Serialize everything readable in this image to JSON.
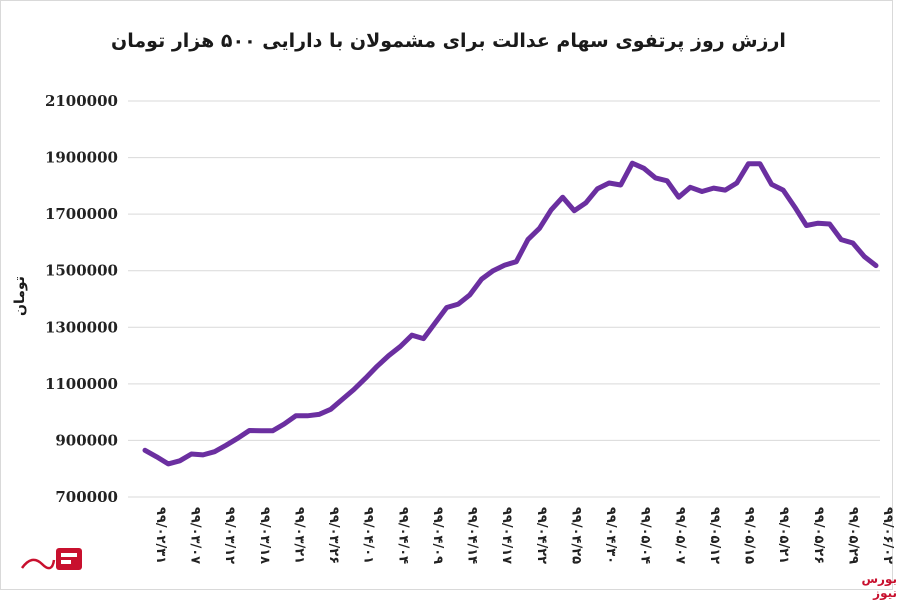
{
  "chart_data": {
    "type": "line",
    "title": "ارزش روز پرتفوی سهام عدالت برای مشمولان با دارایی ۵۰۰ هزار تومان",
    "ylabel": "تومان",
    "xlabel": "",
    "ylim": [
      700000,
      2100000
    ],
    "yticks": [
      700000,
      900000,
      1100000,
      1300000,
      1500000,
      1700000,
      1900000,
      2100000
    ],
    "ytick_labels": [
      "700000",
      "900000",
      "1100000",
      "1300000",
      "1500000",
      "1700000",
      "1900000",
      "2100000"
    ],
    "x_labels": [
      "۹۹/۰۲/۳۱",
      "۹۹/۰۳/۰۷",
      "۹۹/۰۳/۱۲",
      "۹۹/۰۳/۱۸",
      "۹۹/۰۳/۲۱",
      "۹۹/۰۳/۲۶",
      "۹۹/۰۴/۰۱",
      "۹۹/۰۴/۰۴",
      "۹۹/۰۴/۰۹",
      "۹۹/۰۴/۱۴",
      "۹۹/۰۴/۱۷",
      "۹۹/۰۴/۲۲",
      "۹۹/۰۴/۲۵",
      "۹۹/۰۴/۳۰",
      "۹۹/۰۵/۰۴",
      "۹۹/۰۵/۰۷",
      "۹۹/۰۵/۱۲",
      "۹۹/۰۵/۱۵",
      "۹۹/۰۵/۲۱",
      "۹۹/۰۵/۲۶",
      "۹۹/۰۵/۲۹",
      "۹۹/۰۶/۰۲"
    ],
    "grid": true,
    "color": "#6b2fa0",
    "series": [
      {
        "values": [
          865000,
          842000,
          817000,
          828000,
          852000,
          849000,
          860000,
          883000,
          908000,
          935000,
          934000,
          934000,
          958000,
          987000,
          987000,
          992000,
          1010000,
          1045000,
          1080000,
          1120000,
          1162000,
          1200000,
          1232000,
          1272000,
          1260000,
          1315000,
          1370000,
          1382000,
          1415000,
          1470000,
          1500000,
          1520000,
          1532000,
          1610000,
          1650000,
          1715000,
          1760000,
          1712000,
          1740000,
          1790000,
          1810000,
          1803000,
          1880000,
          1862000,
          1828000,
          1818000,
          1760000,
          1795000,
          1780000,
          1792000,
          1785000,
          1810000,
          1878000,
          1878000,
          1805000,
          1785000,
          1725000,
          1660000,
          1668000,
          1665000,
          1610000,
          1598000,
          1550000,
          1518000
        ]
      }
    ]
  },
  "watermark": {
    "brand_text": "بورس نیوز",
    "brand_color": "#c8102e"
  }
}
